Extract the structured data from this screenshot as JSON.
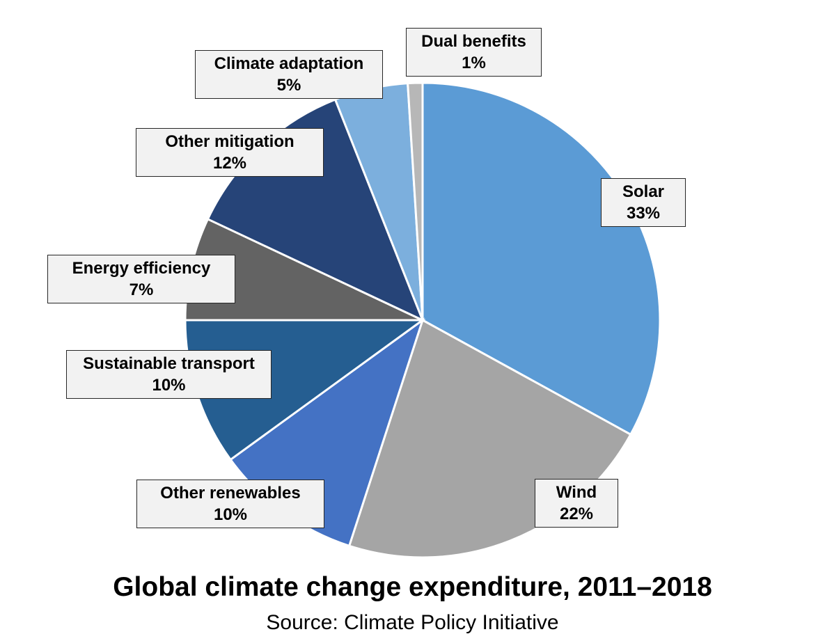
{
  "chart_data": {
    "type": "pie",
    "title": "Global climate change expenditure, 2011–2018",
    "subtitle": "Source: Climate Policy Initiative",
    "start_angle": "12 o'clock, clockwise",
    "slices": [
      {
        "label": "Solar",
        "value": 33,
        "display": "33%",
        "color": "#5b9bd5"
      },
      {
        "label": "Wind",
        "value": 22,
        "display": "22%",
        "color": "#a5a5a5"
      },
      {
        "label": "Other renewables",
        "value": 10,
        "display": "10%",
        "color": "#4472c4"
      },
      {
        "label": "Sustainable transport",
        "value": 10,
        "display": "10%",
        "color": "#255e91"
      },
      {
        "label": "Energy efficiency",
        "value": 7,
        "display": "7%",
        "color": "#636363"
      },
      {
        "label": "Other mitigation",
        "value": 12,
        "display": "12%",
        "color": "#264478"
      },
      {
        "label": "Climate adaptation",
        "value": 5,
        "display": "5%",
        "color": "#7cafdd"
      },
      {
        "label": "Dual benefits",
        "value": 1,
        "display": "1%",
        "color": "#b7b7b7"
      }
    ]
  }
}
